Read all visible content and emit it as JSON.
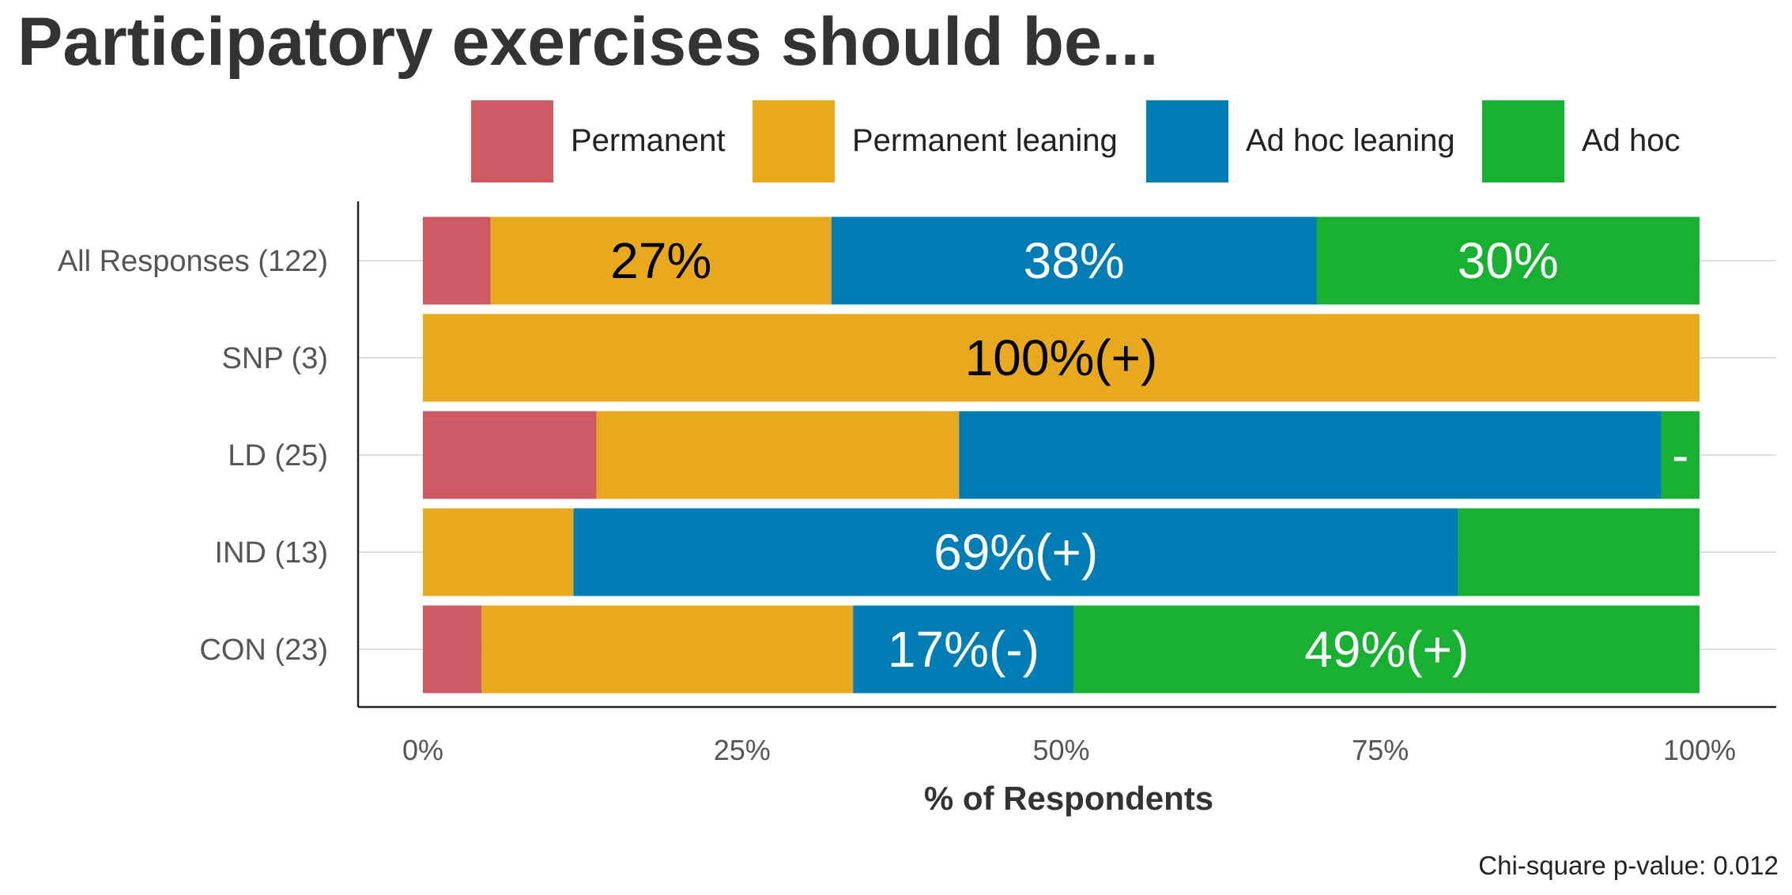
{
  "chart_data": {
    "type": "bar",
    "orientation": "horizontal",
    "stacked": true,
    "normalized": true,
    "title": "Participatory exercises should be...",
    "xlabel": "% of Respondents",
    "ylabel": "",
    "xlim": [
      0,
      100
    ],
    "x_ticks": [
      "0%",
      "25%",
      "50%",
      "75%",
      "100%"
    ],
    "categories": [
      "All Responses (122)",
      "SNP (3)",
      "LD (25)",
      "IND (13)",
      "CON (23)"
    ],
    "series": [
      {
        "name": "Permanent",
        "color": "#CD5963",
        "values": [
          5.3,
          0,
          13.6,
          0,
          4.6
        ]
      },
      {
        "name": "Permanent leaning",
        "color": "#E8A91E",
        "values": [
          26.7,
          100,
          28.4,
          11.8,
          29.1
        ]
      },
      {
        "name": "Ad hoc leaning",
        "color": "#007DB5",
        "values": [
          38.0,
          0,
          55.0,
          69.3,
          17.3
        ]
      },
      {
        "name": "Ad hoc",
        "color": "#17B031",
        "values": [
          30.0,
          0,
          3.0,
          18.9,
          49.0
        ]
      }
    ],
    "data_labels": [
      {
        "category_index": 0,
        "series_index": 1,
        "text": "27%",
        "color": "#000000"
      },
      {
        "category_index": 0,
        "series_index": 2,
        "text": "38%",
        "color": "#ffffff"
      },
      {
        "category_index": 0,
        "series_index": 3,
        "text": "30%",
        "color": "#ffffff"
      },
      {
        "category_index": 1,
        "series_index": 1,
        "text": "100%(+)",
        "color": "#000000"
      },
      {
        "category_index": 2,
        "series_index": 3,
        "text": "-",
        "color": "#ffffff"
      },
      {
        "category_index": 3,
        "series_index": 2,
        "text": "69%(+)",
        "color": "#ffffff"
      },
      {
        "category_index": 4,
        "series_index": 2,
        "text": "17%(-)",
        "color": "#ffffff"
      },
      {
        "category_index": 4,
        "series_index": 3,
        "text": "49%(+)",
        "color": "#ffffff"
      }
    ],
    "legend_position": "top",
    "grid": true,
    "note": "Chi-square p-value: 0.012"
  }
}
